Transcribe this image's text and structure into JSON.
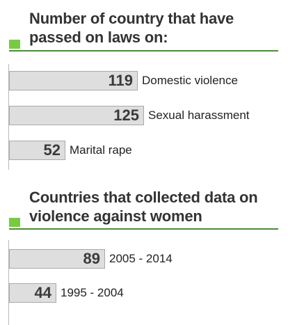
{
  "chart_data": [
    {
      "type": "bar",
      "orientation": "horizontal",
      "title": "Number of country that have passed on laws on:",
      "categories": [
        "Domestic violence",
        "Sexual harassment",
        "Marital rape"
      ],
      "values": [
        119,
        125,
        52
      ],
      "xlim": [
        0,
        140
      ]
    },
    {
      "type": "bar",
      "orientation": "horizontal",
      "title": "Countries that collected data on violence against women",
      "categories": [
        "2005 - 2014",
        "1995 - 2004"
      ],
      "values": [
        89,
        44
      ],
      "xlim": [
        0,
        140
      ]
    }
  ],
  "colors": {
    "accent": "#7ac943",
    "rule": "#4a8a3a",
    "bar_fill": "#dedede",
    "bar_border": "#a9a9a9"
  }
}
